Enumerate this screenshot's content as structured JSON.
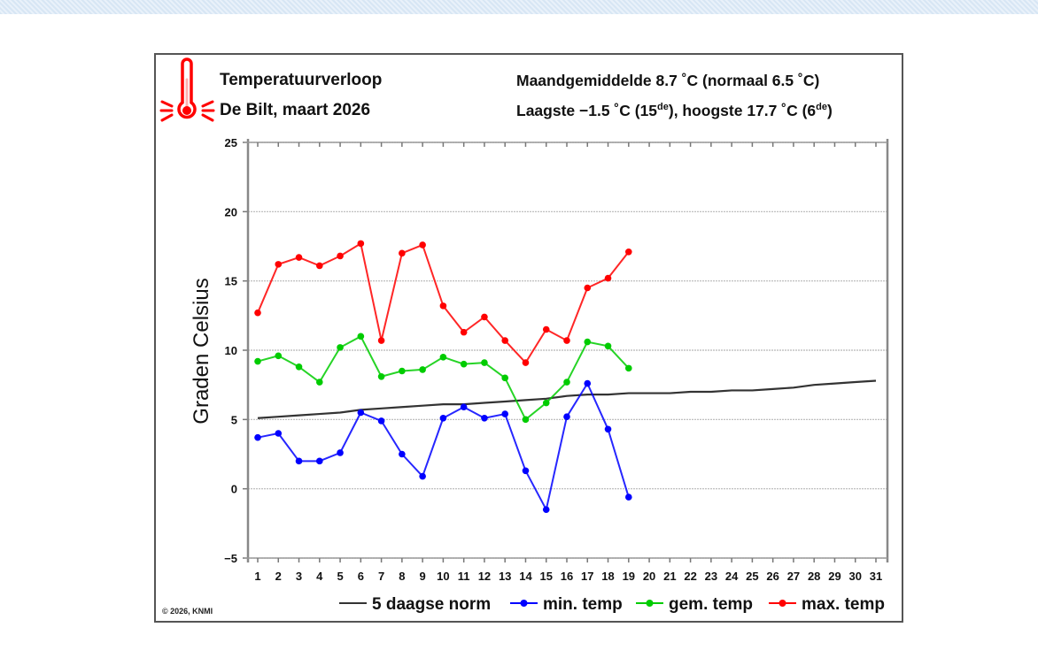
{
  "header": {
    "title": "Temperatuurverloop",
    "subtitle": "De Bilt, maart 2026",
    "stat_line1": "Maandgemiddelde 8.7 ˚C (normaal 6.5 ˚C)",
    "stat_line2_pre": "Laagste −1.5 ˚C (15",
    "stat_line2_sup1": "de",
    "stat_line2_mid": "), hoogste 17.7 ˚C (6",
    "stat_line2_sup2": "de",
    "stat_line2_post": ")",
    "icon": "thermometer-icon"
  },
  "copyright": "© 2026, KNMI",
  "colors": {
    "min": "#0000ff",
    "gem": "#00cc00",
    "max": "#ff0000",
    "norm": "#333333",
    "icon": "#ff0000"
  },
  "chart_data": {
    "type": "line",
    "title": "Temperatuurverloop",
    "subtitle": "De Bilt, maart 2026",
    "xlabel": "",
    "ylabel": "Graden Celsius",
    "ylim": [
      -5,
      25
    ],
    "yticks": [
      -5,
      0,
      5,
      10,
      15,
      20,
      25
    ],
    "ytick_labels": [
      "−5",
      "0",
      "5",
      "10",
      "15",
      "20",
      "25"
    ],
    "xlim": [
      1,
      31
    ],
    "x": [
      1,
      2,
      3,
      4,
      5,
      6,
      7,
      8,
      9,
      10,
      11,
      12,
      13,
      14,
      15,
      16,
      17,
      18,
      19,
      20,
      21,
      22,
      23,
      24,
      25,
      26,
      27,
      28,
      29,
      30,
      31
    ],
    "grid": true,
    "legend_position": "bottom",
    "series": [
      {
        "name": "5 daagse norm",
        "key": "norm",
        "markers": false,
        "values": [
          5.1,
          5.2,
          5.3,
          5.4,
          5.5,
          5.7,
          5.8,
          5.9,
          6.0,
          6.1,
          6.1,
          6.2,
          6.3,
          6.4,
          6.5,
          6.7,
          6.8,
          6.8,
          6.9,
          6.9,
          6.9,
          7.0,
          7.0,
          7.1,
          7.1,
          7.2,
          7.3,
          7.5,
          7.6,
          7.7,
          7.8
        ]
      },
      {
        "name": "min. temp",
        "key": "min",
        "markers": true,
        "values": [
          3.7,
          4.0,
          2.0,
          2.0,
          2.6,
          5.5,
          4.9,
          2.5,
          0.9,
          5.1,
          5.9,
          5.1,
          5.4,
          1.3,
          -1.5,
          5.2,
          7.6,
          4.3,
          -0.6
        ]
      },
      {
        "name": "gem. temp",
        "key": "gem",
        "markers": true,
        "values": [
          9.2,
          9.6,
          8.8,
          7.7,
          10.2,
          11.0,
          8.1,
          8.5,
          8.6,
          9.5,
          9.0,
          9.1,
          8.0,
          5.0,
          6.2,
          7.7,
          10.6,
          10.3,
          8.7
        ]
      },
      {
        "name": "max. temp",
        "key": "max",
        "markers": true,
        "values": [
          12.7,
          16.2,
          16.7,
          16.1,
          16.8,
          17.7,
          10.7,
          17.0,
          17.6,
          13.2,
          11.3,
          12.4,
          10.7,
          9.1,
          11.5,
          10.7,
          14.5,
          15.2,
          17.1
        ]
      }
    ]
  }
}
